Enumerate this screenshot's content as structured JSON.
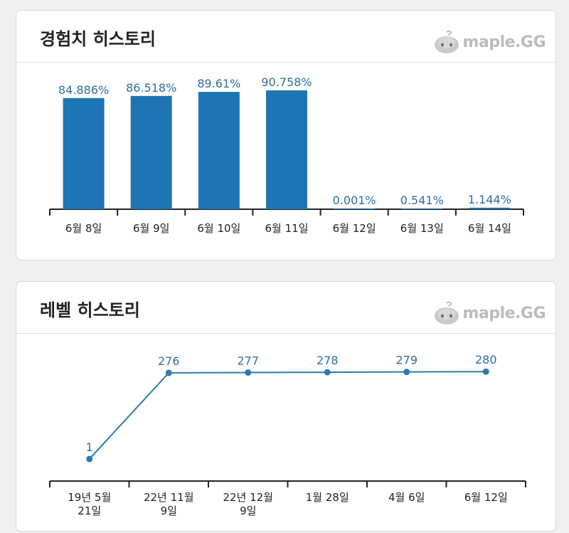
{
  "brand": {
    "name": "maple.GG",
    "icon": "slime-logo-icon"
  },
  "colors": {
    "bar": "#1f74b3",
    "line": "#2b7ab0",
    "label": "#2b6f9f",
    "axis": "#222222"
  },
  "exp_card": {
    "title": "경험치 히스토리"
  },
  "level_card": {
    "title": "레벨 히스토리"
  },
  "chart_data": [
    {
      "type": "bar",
      "title": "경험치 히스토리",
      "categories": [
        "6월 8일",
        "6월 9일",
        "6월 10일",
        "6월 11일",
        "6월 12일",
        "6월 13일",
        "6월 14일"
      ],
      "values": [
        84.886,
        86.518,
        89.61,
        90.758,
        0.001,
        0.541,
        1.144
      ],
      "labels": [
        "84.886%",
        "86.518%",
        "89.61%",
        "90.758%",
        "0.001%",
        "0.541%",
        "1.144%"
      ],
      "ylim": [
        0,
        100
      ],
      "grid": false
    },
    {
      "type": "line",
      "title": "레벨 히스토리",
      "categories": [
        [
          "19년 5월",
          "21일"
        ],
        [
          "22년 11월",
          "9일"
        ],
        [
          "22년 12월",
          "9일"
        ],
        [
          "1월 28일"
        ],
        [
          "4월 6일"
        ],
        [
          "6월 12일"
        ]
      ],
      "values": [
        1,
        276,
        277,
        278,
        279,
        280
      ],
      "labels": [
        "1",
        "276",
        "277",
        "278",
        "279",
        "280"
      ],
      "grid": false
    }
  ]
}
